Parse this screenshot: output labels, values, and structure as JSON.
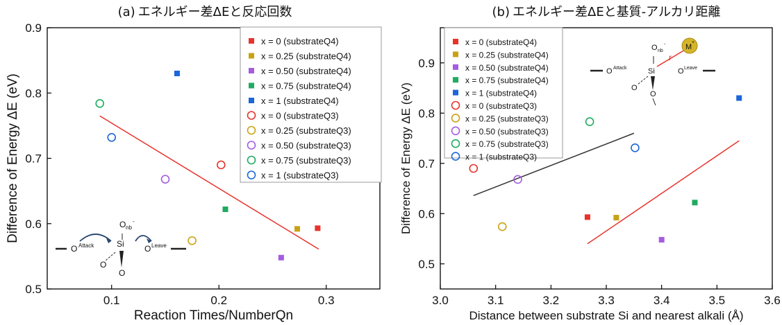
{
  "chart_data": [
    {
      "type": "scatter",
      "panel_label": "(a)",
      "title": "エネルギー差ΔEと反応回数",
      "xlabel": "Reaction Times/NumberQn",
      "ylabel": "Difference of Energy ΔE (eV)",
      "xlim": [
        0.04,
        0.35
      ],
      "ylim": [
        0.5,
        0.9
      ],
      "xticks": [
        "0.1",
        "0.2",
        "0.3"
      ],
      "xtick_values": [
        0.1,
        0.2,
        0.3
      ],
      "yticks": [
        "0.5",
        "0.6",
        "0.7",
        "0.8",
        "0.9"
      ],
      "ytick_values": [
        0.5,
        0.6,
        0.7,
        0.8,
        0.9
      ],
      "grid": false,
      "legend_position": "top-right",
      "series": [
        {
          "name": "x = 0 (substrateQ4)",
          "marker": "square",
          "color": "#e8332c",
          "points": [
            [
              0.292,
              0.593
            ]
          ]
        },
        {
          "name": "x = 0.25 (substrateQ4)",
          "marker": "square",
          "color": "#c9a214",
          "points": [
            [
              0.273,
              0.592
            ]
          ]
        },
        {
          "name": "x = 0.50 (substrateQ4)",
          "marker": "square",
          "color": "#a45de0",
          "points": [
            [
              0.258,
              0.548
            ]
          ]
        },
        {
          "name": "x = 0.75 (substrateQ4)",
          "marker": "square",
          "color": "#1fab60",
          "points": [
            [
              0.206,
              0.622
            ]
          ]
        },
        {
          "name": "x = 1 (substrateQ4)",
          "marker": "square",
          "color": "#1b66d8",
          "points": [
            [
              0.161,
              0.83
            ]
          ]
        },
        {
          "name": "x = 0 (substrateQ3)",
          "marker": "circle",
          "color": "#e8332c",
          "points": [
            [
              0.202,
              0.69
            ]
          ]
        },
        {
          "name": "x = 0.25 (substrateQ3)",
          "marker": "circle",
          "color": "#c9a214",
          "points": [
            [
              0.175,
              0.574
            ]
          ]
        },
        {
          "name": "x = 0.50 (substrateQ3)",
          "marker": "circle",
          "color": "#a45de0",
          "points": [
            [
              0.15,
              0.668
            ]
          ]
        },
        {
          "name": "x = 0.75 (substrateQ3)",
          "marker": "circle",
          "color": "#1fab60",
          "points": [
            [
              0.089,
              0.784
            ]
          ]
        },
        {
          "name": "x = 1 (substrateQ3)",
          "marker": "circle",
          "color": "#1b66d8",
          "points": [
            [
              0.1,
              0.732
            ]
          ]
        }
      ],
      "fit_lines": [
        {
          "color": "#e8332c",
          "points": [
            [
              0.089,
              0.765
            ],
            [
              0.293,
              0.561
            ]
          ]
        }
      ],
      "inset": {
        "labels": [
          "O",
          "Attack",
          "O",
          "nb",
          "-",
          "Si",
          "O",
          "Leave",
          "O",
          "O"
        ]
      }
    },
    {
      "type": "scatter",
      "panel_label": "(b)",
      "title": "エネルギー差ΔEと基質-アルカリ距離",
      "xlabel": "Distance between substrate Si and nearest alkali (Å)",
      "ylabel": "Difference of Energy ΔE (eV)",
      "xlim": [
        3.0,
        3.6
      ],
      "ylim": [
        0.45,
        0.97
      ],
      "xticks": [
        "3.0",
        "3.1",
        "3.2",
        "3.3",
        "3.4",
        "3.5",
        "3.6"
      ],
      "xtick_values": [
        3.0,
        3.1,
        3.2,
        3.3,
        3.4,
        3.5,
        3.6
      ],
      "yticks": [
        "0.5",
        "0.6",
        "0.7",
        "0.8",
        "0.9"
      ],
      "ytick_values": [
        0.5,
        0.6,
        0.7,
        0.8,
        0.9
      ],
      "grid": false,
      "legend_position": "top-left",
      "series": [
        {
          "name": "x = 0 (substrateQ4)",
          "marker": "square",
          "color": "#e8332c",
          "points": [
            [
              3.266,
              0.593
            ]
          ]
        },
        {
          "name": "x = 0.25 (substrateQ4)",
          "marker": "square",
          "color": "#c9a214",
          "points": [
            [
              3.318,
              0.592
            ]
          ]
        },
        {
          "name": "x = 0.50 (substrateQ4)",
          "marker": "square",
          "color": "#a45de0",
          "points": [
            [
              3.4,
              0.548
            ]
          ]
        },
        {
          "name": "x = 0.75 (substrateQ4)",
          "marker": "square",
          "color": "#1fab60",
          "points": [
            [
              3.46,
              0.622
            ]
          ]
        },
        {
          "name": "x = 1 (substrateQ4)",
          "marker": "square",
          "color": "#1b66d8",
          "points": [
            [
              3.54,
              0.83
            ]
          ]
        },
        {
          "name": "x = 0 (substrateQ3)",
          "marker": "circle",
          "color": "#e8332c",
          "points": [
            [
              3.06,
              0.69
            ]
          ]
        },
        {
          "name": "x = 0.25 (substrateQ3)",
          "marker": "circle",
          "color": "#c9a214",
          "points": [
            [
              3.112,
              0.574
            ]
          ]
        },
        {
          "name": "x = 0.50 (substrateQ3)",
          "marker": "circle",
          "color": "#a45de0",
          "points": [
            [
              3.14,
              0.668
            ]
          ]
        },
        {
          "name": "x = 0.75 (substrateQ3)",
          "marker": "circle",
          "color": "#1fab60",
          "points": [
            [
              3.27,
              0.783
            ]
          ]
        },
        {
          "name": "x = 1 (substrateQ3)",
          "marker": "circle",
          "color": "#1b66d8",
          "points": [
            [
              3.352,
              0.731
            ]
          ]
        }
      ],
      "fit_lines": [
        {
          "color": "#333333",
          "points": [
            [
              3.06,
              0.636
            ],
            [
              3.35,
              0.76
            ]
          ]
        },
        {
          "color": "#e8332c",
          "points": [
            [
              3.266,
              0.54
            ],
            [
              3.54,
              0.745
            ]
          ]
        }
      ],
      "inset": {
        "labels": [
          "O",
          "Attack",
          "O",
          "nb",
          "-",
          "Si",
          "O",
          "Leave",
          "O",
          "O",
          "M",
          "+",
          "r"
        ]
      }
    }
  ]
}
